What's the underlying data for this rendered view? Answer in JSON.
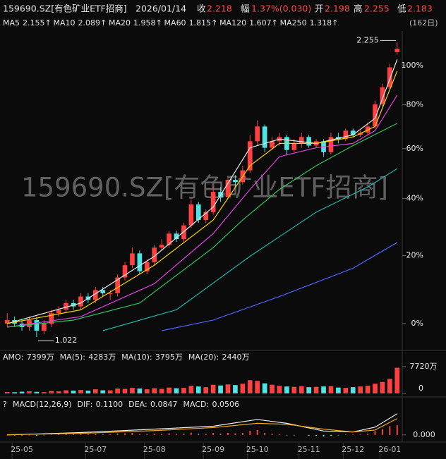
{
  "header": {
    "title": "159690.SZ[有色矿业ETF招商]",
    "date": "2026/01/14",
    "quote_labels": [
      "收",
      "幅",
      "开",
      "高",
      "低"
    ],
    "change": "1.37%(0.030)",
    "period": "(162日)"
  },
  "chart_data": {
    "type": "candlestick",
    "ylog": true,
    "up_color": "#ff4040",
    "down_color": "#4fe3e3",
    "categories": [
      null,
      null,
      "25-05",
      null,
      null,
      null,
      null,
      null,
      null,
      null,
      null,
      null,
      "25-07",
      null,
      null,
      null,
      null,
      null,
      null,
      null,
      "25-08",
      null,
      null,
      null,
      null,
      null,
      null,
      null,
      "25-09",
      null,
      null,
      null,
      null,
      null,
      "25-10",
      null,
      null,
      null,
      null,
      null,
      null,
      "25-11",
      null,
      null,
      null,
      null,
      null,
      "25-12",
      null,
      null,
      null,
      null,
      "26-01",
      null
    ],
    "open": [
      1.06,
      1.07,
      1.06,
      1.05,
      1.07,
      1.04,
      1.06,
      1.09,
      1.1,
      1.12,
      1.11,
      1.14,
      1.13,
      1.16,
      1.15,
      1.15,
      1.2,
      1.24,
      1.28,
      1.22,
      1.25,
      1.3,
      1.31,
      1.35,
      1.33,
      1.38,
      1.46,
      1.4,
      1.43,
      1.51,
      1.49,
      1.56,
      1.55,
      1.6,
      1.73,
      1.8,
      1.7,
      1.73,
      1.75,
      1.69,
      1.72,
      1.75,
      1.71,
      1.73,
      1.68,
      1.75,
      1.74,
      1.78,
      1.76,
      1.77,
      1.8,
      1.91,
      2.0,
      2.198
    ],
    "high": [
      1.09,
      1.08,
      1.07,
      1.08,
      1.08,
      1.07,
      1.1,
      1.11,
      1.13,
      1.13,
      1.15,
      1.15,
      1.17,
      1.17,
      1.16,
      1.21,
      1.25,
      1.3,
      1.29,
      1.26,
      1.31,
      1.33,
      1.36,
      1.36,
      1.39,
      1.48,
      1.47,
      1.44,
      1.53,
      1.53,
      1.57,
      1.58,
      1.62,
      1.76,
      1.83,
      1.81,
      1.75,
      1.77,
      1.76,
      1.74,
      1.77,
      1.76,
      1.74,
      1.74,
      1.77,
      1.77,
      1.79,
      1.79,
      1.78,
      1.82,
      1.93,
      2.02,
      2.13,
      2.255
    ],
    "low": [
      1.05,
      1.05,
      1.04,
      1.04,
      1.022,
      1.03,
      1.05,
      1.08,
      1.09,
      1.1,
      1.1,
      1.12,
      1.12,
      1.14,
      1.13,
      1.14,
      1.19,
      1.23,
      1.21,
      1.21,
      1.24,
      1.29,
      1.3,
      1.32,
      1.32,
      1.37,
      1.39,
      1.39,
      1.42,
      1.47,
      1.48,
      1.53,
      1.54,
      1.59,
      1.71,
      1.68,
      1.69,
      1.71,
      1.67,
      1.68,
      1.7,
      1.7,
      1.7,
      1.66,
      1.67,
      1.72,
      1.73,
      1.75,
      1.75,
      1.76,
      1.79,
      1.9,
      1.99,
      2.183
    ],
    "close": [
      1.07,
      1.06,
      1.05,
      1.07,
      1.04,
      1.06,
      1.09,
      1.1,
      1.12,
      1.11,
      1.14,
      1.13,
      1.16,
      1.15,
      1.15,
      1.2,
      1.24,
      1.28,
      1.22,
      1.25,
      1.3,
      1.31,
      1.35,
      1.33,
      1.38,
      1.46,
      1.4,
      1.43,
      1.51,
      1.49,
      1.56,
      1.55,
      1.6,
      1.73,
      1.8,
      1.7,
      1.73,
      1.75,
      1.69,
      1.72,
      1.75,
      1.71,
      1.73,
      1.68,
      1.75,
      1.74,
      1.78,
      1.76,
      1.77,
      1.8,
      1.91,
      2.0,
      2.11,
      2.218
    ],
    "ylim": [
      0.99,
      2.3
    ],
    "yticks": [
      {
        "value": 1.06,
        "label": "0%"
      },
      {
        "value": 1.272,
        "label": "20%"
      },
      {
        "value": 1.484,
        "label": "40%"
      },
      {
        "value": 1.696,
        "label": "60%"
      },
      {
        "value": 1.908,
        "label": "80%"
      },
      {
        "value": 2.12,
        "label": "100%"
      }
    ],
    "series": [
      {
        "name": "MA5",
        "color": "#e8e8e8",
        "x": [
          0,
          10,
          20,
          28,
          33,
          37,
          42,
          47,
          50,
          53
        ],
        "values": [
          1.06,
          1.12,
          1.27,
          1.45,
          1.7,
          1.74,
          1.72,
          1.76,
          1.84,
          2.155
        ]
      },
      {
        "name": "MA10",
        "color": "#f5d300",
        "x": [
          0,
          10,
          20,
          28,
          33,
          37,
          42,
          47,
          50,
          53
        ],
        "values": [
          1.06,
          1.1,
          1.24,
          1.4,
          1.62,
          1.72,
          1.72,
          1.75,
          1.8,
          2.089
        ]
      },
      {
        "name": "MA20",
        "color": "#e040e0",
        "x": [
          0,
          10,
          20,
          28,
          33,
          37,
          42,
          47,
          50,
          53
        ],
        "values": [
          1.05,
          1.08,
          1.18,
          1.35,
          1.52,
          1.66,
          1.7,
          1.72,
          1.78,
          1.958
        ]
      },
      {
        "name": "MA60",
        "color": "#2fc25b",
        "x": [
          0,
          9,
          18,
          28,
          32,
          37,
          42,
          47,
          53
        ],
        "values": [
          1.05,
          1.07,
          1.12,
          1.3,
          1.4,
          1.52,
          1.62,
          1.71,
          1.815
        ]
      },
      {
        "name": "MA120",
        "color": "#20b2aa",
        "x": [
          13,
          23,
          33,
          42,
          49,
          53
        ],
        "values": [
          1.04,
          1.1,
          1.27,
          1.43,
          1.53,
          1.607
        ]
      },
      {
        "name": "MA250",
        "color": "#4a63ff",
        "x": [
          21,
          28,
          37,
          47,
          53
        ],
        "values": [
          1.04,
          1.07,
          1.14,
          1.23,
          1.318
        ]
      }
    ],
    "volume": {
      "legend": [
        {
          "name": "AMO",
          "value": "7399万"
        },
        {
          "name": "MA(5)",
          "value": "4283万"
        },
        {
          "name": "MA(10)",
          "value": "3795万"
        },
        {
          "name": "MA(20)",
          "value": "2440万"
        }
      ],
      "values": [
        400,
        350,
        500,
        600,
        450,
        380,
        700,
        600,
        900,
        800,
        1000,
        800,
        1200,
        900,
        900,
        1400,
        1300,
        1600,
        1400,
        1200,
        1500,
        1300,
        1700,
        1500,
        1600,
        2200,
        2000,
        1800,
        2500,
        2300,
        2600,
        2400,
        2800,
        3800,
        3600,
        2900,
        2500,
        2200,
        2000,
        1900,
        2100,
        1800,
        1900,
        2000,
        2100,
        1700,
        1600,
        1800,
        2000,
        2200,
        2800,
        3300,
        4200,
        7399
      ],
      "ylim": [
        0,
        7720
      ],
      "yticks": [
        {
          "value": 7720,
          "label": "7720万"
        },
        0
      ]
    },
    "macd": {
      "title": "MACD(12,26,9)",
      "legend": [
        {
          "name": "DIF",
          "value": "0.1100"
        },
        {
          "name": "DEA",
          "value": "0.0847"
        },
        {
          "name": "MACD",
          "value": "0.0506"
        }
      ],
      "values": [
        -0.002,
        -0.003,
        -0.003,
        -0.002,
        -0.004,
        -0.002,
        0.002,
        0.003,
        0.004,
        0.003,
        0.005,
        0.004,
        0.006,
        0.004,
        0.003,
        0.007,
        0.008,
        0.01,
        0.004,
        0.004,
        0.006,
        0.005,
        0.008,
        0.005,
        0.007,
        0.012,
        0.006,
        0.005,
        0.01,
        0.007,
        0.01,
        0.008,
        0.01,
        0.022,
        0.025,
        0.01,
        0.006,
        0.004,
        -0.002,
        -0.002,
        0,
        -0.004,
        -0.004,
        -0.008,
        -0.004,
        -0.002,
        0.002,
        0.002,
        0.002,
        0.006,
        0.02,
        0.03,
        0.045,
        0.0506
      ],
      "series": [
        {
          "name": "DIF",
          "color": "#f0f0f0",
          "x": [
            0,
            10,
            20,
            28,
            34,
            38,
            43,
            47,
            50,
            53
          ],
          "values": [
            0,
            0.012,
            0.03,
            0.045,
            0.08,
            0.06,
            0.02,
            0.015,
            0.04,
            0.11
          ]
        },
        {
          "name": "DEA",
          "color": "#f5a623",
          "x": [
            0,
            10,
            20,
            28,
            34,
            38,
            43,
            47,
            50,
            53
          ],
          "values": [
            0.001,
            0.008,
            0.022,
            0.038,
            0.06,
            0.055,
            0.03,
            0.015,
            0.025,
            0.0847
          ]
        }
      ],
      "ylim": [
        -0.03,
        0.12
      ],
      "yticks": [
        {
          "value": 0,
          "label": "0.000"
        }
      ]
    }
  }
}
